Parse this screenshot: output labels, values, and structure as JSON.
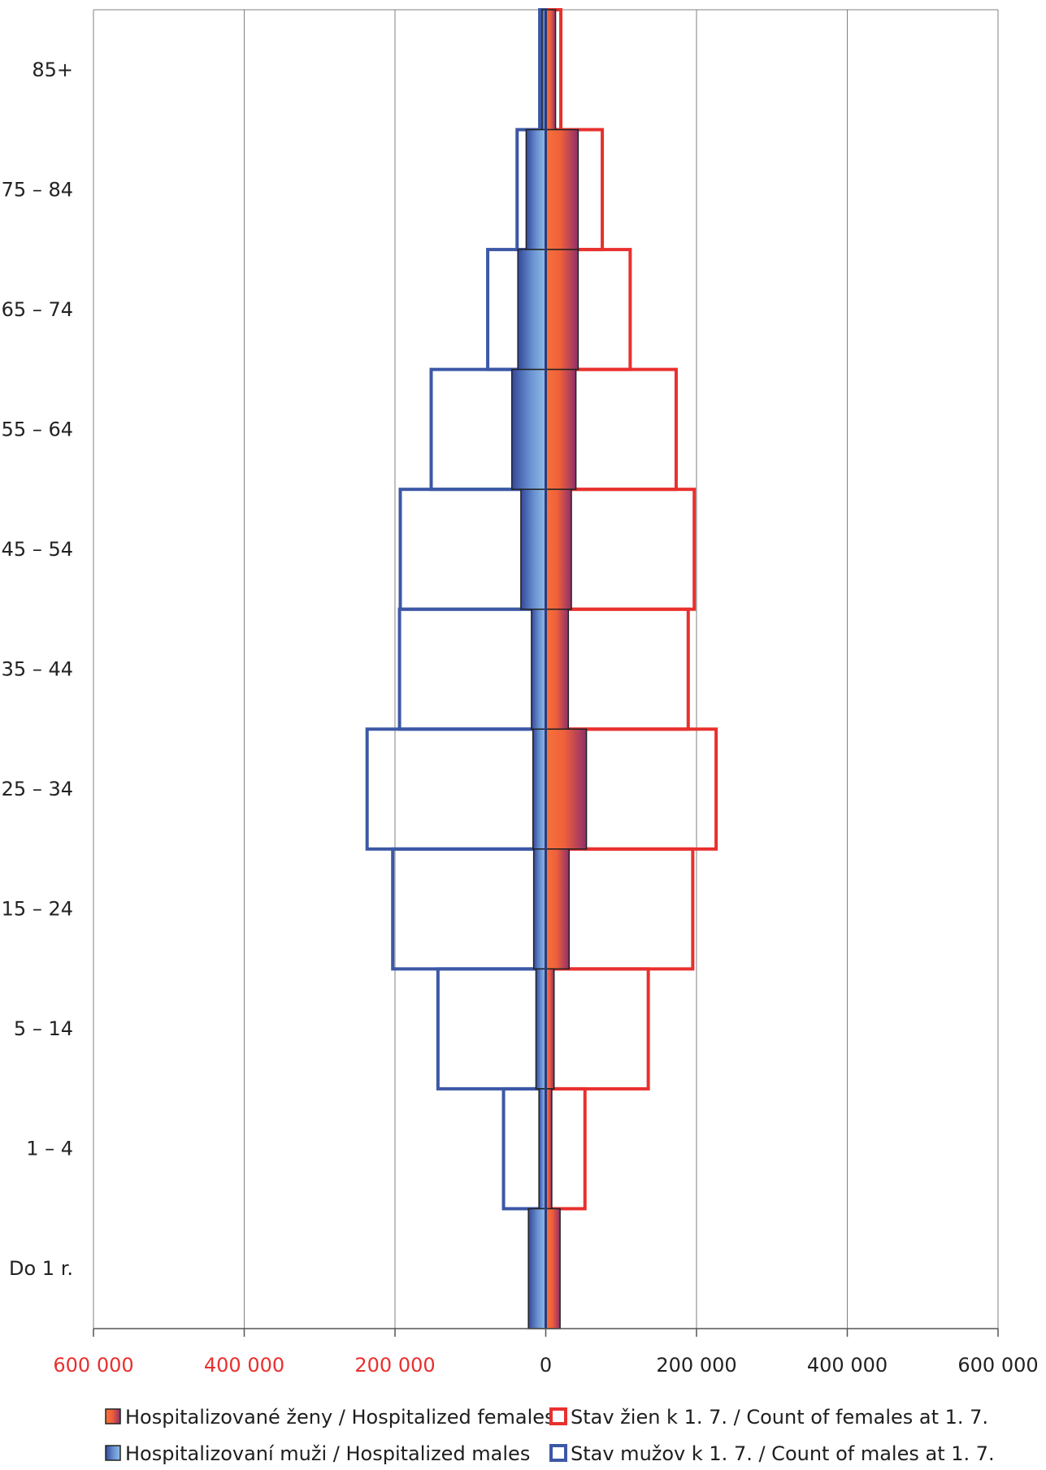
{
  "chart_data": {
    "type": "bar",
    "orientation": "horizontal",
    "layout": "population-pyramid",
    "categories": [
      "85+",
      "75 – 84",
      "65 – 74",
      "55 – 64",
      "45 – 54",
      "35 – 44",
      "25 – 34",
      "15 – 24",
      "5 – 14",
      "1 – 4",
      "Do 1 r."
    ],
    "series": [
      {
        "name": "Hospitalizované ženy / Hospitalized females",
        "side": "right",
        "style": "filled",
        "values": [
          13000,
          43000,
          43000,
          40000,
          34000,
          30000,
          54000,
          31000,
          11000,
          8000,
          19000
        ]
      },
      {
        "name": "Stav žien k 1. 7. / Count of females at 1. 7.",
        "side": "right",
        "style": "outline",
        "values": [
          20000,
          75000,
          112000,
          173000,
          197000,
          189000,
          226000,
          195000,
          136000,
          52000,
          0
        ]
      },
      {
        "name": "Hospitalizovaní muži / Hospitalized males",
        "side": "left",
        "style": "filled",
        "values": [
          5000,
          26000,
          37000,
          45000,
          33000,
          19000,
          17000,
          16000,
          13000,
          9000,
          23000
        ]
      },
      {
        "name": "Stav mužov k 1. 7. / Count of males at 1. 7.",
        "side": "left",
        "style": "outline",
        "values": [
          8000,
          38000,
          77000,
          152000,
          193000,
          194000,
          237000,
          203000,
          143000,
          56000,
          0
        ]
      }
    ],
    "xlim": [
      -600000,
      600000
    ],
    "xticks": [
      {
        "value": -600000,
        "label": "600 000"
      },
      {
        "value": -400000,
        "label": "400 000"
      },
      {
        "value": -200000,
        "label": "200 000"
      },
      {
        "value": 0,
        "label": "0"
      },
      {
        "value": 200000,
        "label": "200 000"
      },
      {
        "value": 400000,
        "label": "400 000"
      },
      {
        "value": 600000,
        "label": "600 000"
      }
    ],
    "grid": true,
    "legend": "bottom",
    "colors": {
      "females_outline": "#e8302e",
      "males_outline": "#3c58a6",
      "tick_labels_left": "#e8302e",
      "tick_labels_right": "#222222",
      "females_fill_start": "#f5733a",
      "females_fill_end": "#8f2f6a",
      "males_fill_start": "#3a55a4",
      "males_fill_end": "#8fbde6",
      "grid": "#808080"
    }
  }
}
